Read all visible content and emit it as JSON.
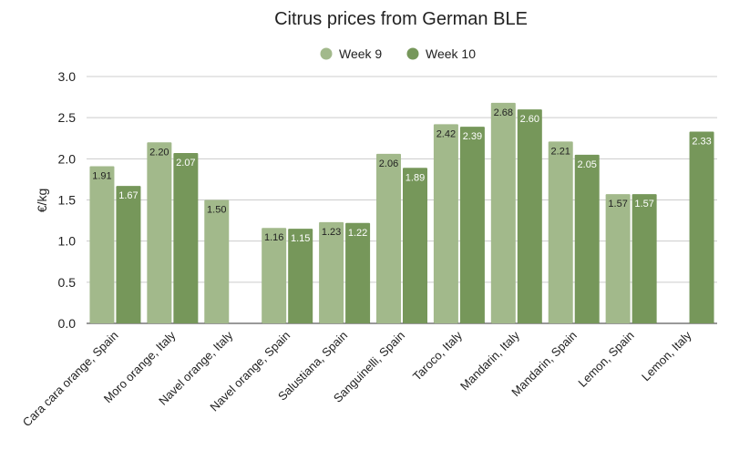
{
  "chart_data": {
    "type": "bar",
    "title": "Citrus prices from German BLE",
    "xlabel": "",
    "ylabel": "€/kg",
    "ylim": [
      0,
      3.0
    ],
    "yticks": [
      "0.0",
      "0.5",
      "1.0",
      "1.5",
      "2.0",
      "2.5",
      "3.0"
    ],
    "grid": true,
    "legend_position": "top-center",
    "categories": [
      "Cara cara orange, Spain",
      "Moro orange, Italy",
      "Navel orange, Italy",
      "Navel orange, Spain",
      "Salustiana, Spain",
      "Sanguinelli, Spain",
      "Taroco, Italy",
      "Mandarin, Italy",
      "Mandarin, Spain",
      "Lemon, Spain",
      "Lemon, Italy"
    ],
    "series": [
      {
        "name": "Week 9",
        "color": "#a2b98b",
        "values": [
          1.91,
          2.2,
          1.5,
          1.16,
          1.23,
          2.06,
          2.42,
          2.68,
          2.21,
          1.57,
          null
        ],
        "labels": [
          "1.91",
          "2.20",
          "1.50",
          "1.16",
          "1.23",
          "2.06",
          "2.42",
          "2.68",
          "2.21",
          "1.57",
          ""
        ]
      },
      {
        "name": "Week 10",
        "color": "#76975a",
        "values": [
          1.67,
          2.07,
          null,
          1.15,
          1.22,
          1.89,
          2.39,
          2.6,
          2.05,
          1.57,
          2.33
        ],
        "labels": [
          "1.67",
          "2.07",
          "",
          "1.15",
          "1.22",
          "1.89",
          "2.39",
          "2.60",
          "2.05",
          "1.57",
          "2.33"
        ]
      }
    ]
  }
}
